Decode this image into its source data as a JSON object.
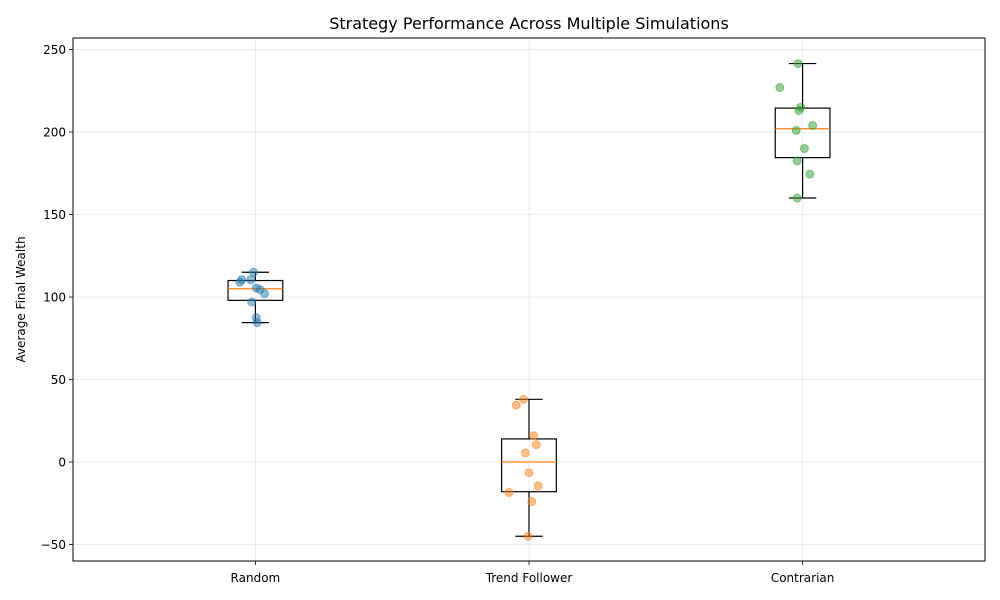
{
  "chart_data": {
    "type": "box",
    "title": "Strategy Performance Across Multiple Simulations",
    "xlabel": "",
    "ylabel": "Average Final Wealth",
    "ylim": [
      -60,
      257
    ],
    "yticks": [
      -50,
      0,
      50,
      100,
      150,
      200,
      250
    ],
    "ytick_labels": [
      "−50",
      "0",
      "50",
      "100",
      "150",
      "200",
      "250"
    ],
    "grid": true,
    "categories": [
      "Random",
      "Trend Follower",
      "Contrarian"
    ],
    "series": [
      {
        "category": "Random",
        "color": "#1f77b4",
        "box": {
          "whisker_low": 84.5,
          "q1": 98,
          "median": 105,
          "q3": 110,
          "whisker_high": 115
        },
        "points": [
          {
            "x": 1.83,
            "y": 109
          },
          {
            "x": 1.85,
            "y": 110.5
          },
          {
            "x": 1.95,
            "y": 110.5
          },
          {
            "x": 1.98,
            "y": 115
          },
          {
            "x": 2.01,
            "y": 105.5
          },
          {
            "x": 2.05,
            "y": 104.5
          },
          {
            "x": 2.1,
            "y": 102
          },
          {
            "x": 1.96,
            "y": 97
          },
          {
            "x": 2.01,
            "y": 87.5
          },
          {
            "x": 2.02,
            "y": 84.5
          }
        ]
      },
      {
        "category": "Trend Follower",
        "color": "#ff7f0e",
        "box": {
          "whisker_low": -45,
          "q1": -18,
          "median": 0,
          "q3": 14,
          "whisker_high": 38
        },
        "points": [
          {
            "x": 4.94,
            "y": 38
          },
          {
            "x": 4.86,
            "y": 34.5
          },
          {
            "x": 5.05,
            "y": 16
          },
          {
            "x": 5.08,
            "y": 10.5
          },
          {
            "x": 4.96,
            "y": 5.5
          },
          {
            "x": 5.0,
            "y": -6.5
          },
          {
            "x": 5.1,
            "y": -14.5
          },
          {
            "x": 4.78,
            "y": -18.5
          },
          {
            "x": 5.03,
            "y": -24
          },
          {
            "x": 4.99,
            "y": -45
          }
        ]
      },
      {
        "category": "Contrarian",
        "color": "#2ca02c",
        "box": {
          "whisker_low": 160,
          "q1": 184.5,
          "median": 202,
          "q3": 214.5,
          "whisker_high": 241.5
        },
        "points": [
          {
            "x": 7.95,
            "y": 241.5
          },
          {
            "x": 7.75,
            "y": 227
          },
          {
            "x": 7.98,
            "y": 215
          },
          {
            "x": 7.96,
            "y": 213
          },
          {
            "x": 8.11,
            "y": 204
          },
          {
            "x": 7.93,
            "y": 201
          },
          {
            "x": 8.02,
            "y": 190
          },
          {
            "x": 7.94,
            "y": 182.5
          },
          {
            "x": 8.08,
            "y": 174.5
          },
          {
            "x": 7.94,
            "y": 160
          }
        ]
      }
    ]
  }
}
